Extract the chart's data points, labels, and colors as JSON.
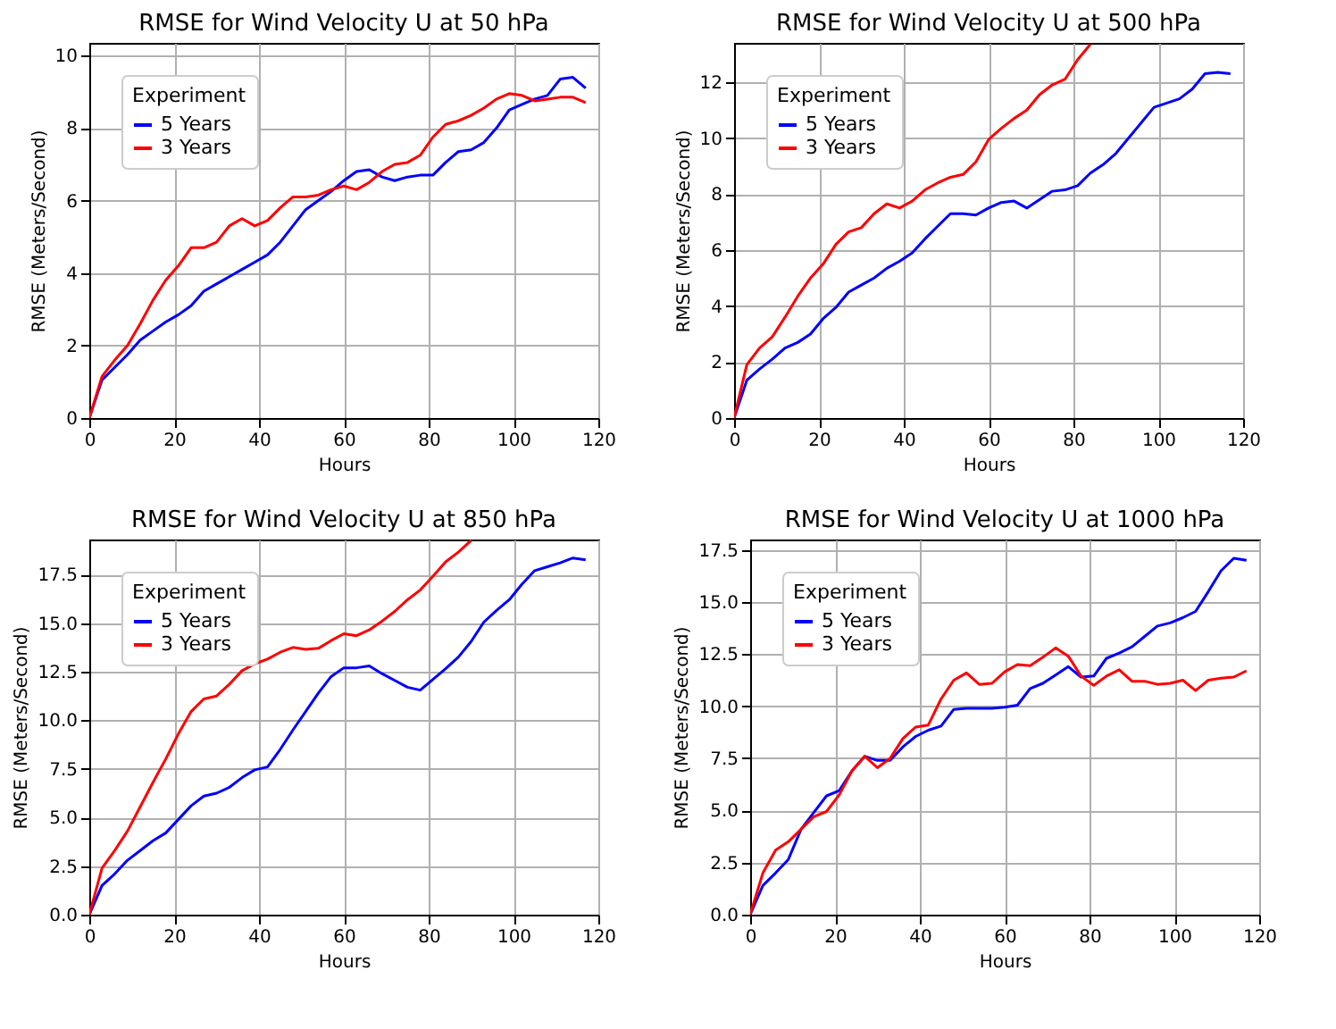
{
  "chart_data": [
    {
      "type": "line",
      "line_style": "solid",
      "title": "RMSE for Wind Velocity U at 50 hPa",
      "xlabel": "Hours",
      "ylabel": "RMSE (Meters/Second)",
      "legend_title": "Experiment",
      "legend": "top left",
      "grid": true,
      "x": [
        0,
        3,
        6,
        9,
        12,
        15,
        18,
        21,
        24,
        27,
        30,
        33,
        36,
        39,
        42,
        45,
        48,
        51,
        54,
        57,
        60,
        63,
        66,
        69,
        72,
        75,
        78,
        81,
        84,
        87,
        90,
        93,
        96,
        99,
        102,
        105,
        108,
        111,
        114,
        117
      ],
      "xlim": [
        0,
        120
      ],
      "xticks": [
        0,
        20,
        40,
        60,
        80,
        100,
        120
      ],
      "ylim": [
        0,
        10.35
      ],
      "yticks": [
        0,
        2,
        4,
        6,
        8,
        10
      ],
      "series": [
        {
          "name": "5 Years",
          "color": "#0000ff",
          "values": [
            0,
            1.05,
            1.4,
            1.75,
            2.15,
            2.4,
            2.65,
            2.85,
            3.1,
            3.5,
            3.7,
            3.9,
            4.1,
            4.3,
            4.5,
            4.85,
            5.3,
            5.75,
            6.0,
            6.25,
            6.55,
            6.8,
            6.85,
            6.65,
            6.55,
            6.65,
            6.7,
            6.7,
            7.05,
            7.35,
            7.4,
            7.6,
            8.0,
            8.5,
            8.65,
            8.8,
            8.9,
            9.35,
            9.4,
            9.1
          ]
        },
        {
          "name": "3 Years",
          "color": "#ff0000",
          "values": [
            0,
            1.15,
            1.6,
            2.0,
            2.6,
            3.25,
            3.8,
            4.2,
            4.7,
            4.7,
            4.85,
            5.3,
            5.5,
            5.3,
            5.45,
            5.8,
            6.1,
            6.1,
            6.15,
            6.3,
            6.4,
            6.3,
            6.5,
            6.8,
            7.0,
            7.05,
            7.25,
            7.75,
            8.1,
            8.2,
            8.35,
            8.55,
            8.8,
            8.95,
            8.9,
            8.75,
            8.8,
            8.85,
            8.85,
            8.7
          ]
        }
      ]
    },
    {
      "type": "line",
      "line_style": "solid",
      "title": "RMSE for Wind Velocity U at 500 hPa",
      "xlabel": "Hours",
      "ylabel": "RMSE (Meters/Second)",
      "legend_title": "Experiment",
      "legend": "top left",
      "grid": true,
      "x": [
        0,
        3,
        6,
        9,
        12,
        15,
        18,
        21,
        24,
        27,
        30,
        33,
        36,
        39,
        42,
        45,
        48,
        51,
        54,
        57,
        60,
        63,
        66,
        69,
        72,
        75,
        78,
        81,
        84,
        87,
        90,
        93,
        96,
        99,
        102,
        105,
        108,
        111,
        114,
        117
      ],
      "xlim": [
        0,
        120
      ],
      "xticks": [
        0,
        20,
        40,
        60,
        80,
        100,
        120
      ],
      "ylim": [
        0,
        13.4
      ],
      "yticks": [
        0,
        2,
        4,
        6,
        8,
        10,
        12
      ],
      "series": [
        {
          "name": "5 Years",
          "color": "#0000ff",
          "values": [
            0,
            1.35,
            1.75,
            2.1,
            2.5,
            2.7,
            3.0,
            3.55,
            3.95,
            4.5,
            4.75,
            5.0,
            5.35,
            5.6,
            5.9,
            6.4,
            6.85,
            7.3,
            7.3,
            7.25,
            7.5,
            7.7,
            7.75,
            7.5,
            7.8,
            8.1,
            8.15,
            8.3,
            8.75,
            9.05,
            9.45,
            10.0,
            10.55,
            11.1,
            11.25,
            11.4,
            11.75,
            12.3,
            12.35,
            12.3
          ]
        },
        {
          "name": "3 Years",
          "color": "#ff0000",
          "values": [
            0,
            1.9,
            2.5,
            2.9,
            3.6,
            4.35,
            5.0,
            5.5,
            6.2,
            6.65,
            6.8,
            7.3,
            7.65,
            7.5,
            7.75,
            8.15,
            8.4,
            8.6,
            8.7,
            9.15,
            9.95,
            10.35,
            10.7,
            11.0,
            11.55,
            11.9,
            12.1,
            12.8,
            13.35,
            null,
            null,
            null,
            null,
            null,
            null,
            null,
            null,
            null,
            null,
            null
          ]
        }
      ]
    },
    {
      "type": "line",
      "line_style": "solid",
      "title": "RMSE for Wind Velocity U at 850 hPa",
      "xlabel": "Hours",
      "ylabel": "RMSE (Meters/Second)",
      "legend_title": "Experiment",
      "legend": "top left",
      "grid": true,
      "x": [
        0,
        3,
        6,
        9,
        12,
        15,
        18,
        21,
        24,
        27,
        30,
        33,
        36,
        39,
        42,
        45,
        48,
        51,
        54,
        57,
        60,
        63,
        66,
        69,
        72,
        75,
        78,
        81,
        84,
        87,
        90,
        93,
        96,
        99,
        102,
        105,
        108,
        111,
        114,
        117
      ],
      "xlim": [
        0,
        120
      ],
      "xticks": [
        0,
        20,
        40,
        60,
        80,
        100,
        120
      ],
      "ylim": [
        0,
        19.3
      ],
      "yticks": [
        {
          "value": 0,
          "label": "0.0"
        },
        2.5,
        {
          "value": 5,
          "label": "5.0"
        },
        7.5,
        {
          "value": 10,
          "label": "10.0"
        },
        12.5,
        {
          "value": 15,
          "label": "15.0"
        },
        17.5
      ],
      "series": [
        {
          "name": "5 Years",
          "color": "#0000ff",
          "values": [
            0,
            1.5,
            2.1,
            2.8,
            3.3,
            3.8,
            4.2,
            4.9,
            5.6,
            6.1,
            6.25,
            6.55,
            7.05,
            7.45,
            7.6,
            8.5,
            9.5,
            10.45,
            11.4,
            12.25,
            12.7,
            12.7,
            12.8,
            12.4,
            12.05,
            11.7,
            11.55,
            12.1,
            12.65,
            13.25,
            14.05,
            15.05,
            15.65,
            16.2,
            17.0,
            17.7,
            17.9,
            18.1,
            18.35,
            18.25
          ]
        },
        {
          "name": "3 Years",
          "color": "#ff0000",
          "values": [
            0,
            2.4,
            3.3,
            4.3,
            5.55,
            6.8,
            8.0,
            9.3,
            10.45,
            11.1,
            11.25,
            11.85,
            12.55,
            12.9,
            13.15,
            13.5,
            13.75,
            13.65,
            13.7,
            14.1,
            14.45,
            14.35,
            14.65,
            15.1,
            15.6,
            16.2,
            16.7,
            17.4,
            18.15,
            18.65,
            19.25,
            null,
            null,
            null,
            null,
            null,
            null,
            null,
            null,
            null
          ]
        }
      ]
    },
    {
      "type": "line",
      "line_style": "solid",
      "title": "RMSE for Wind Velocity U at 1000 hPa",
      "xlabel": "Hours",
      "ylabel": "RMSE (Meters/Second)",
      "legend_title": "Experiment",
      "legend": "top left",
      "grid": true,
      "x": [
        0,
        3,
        6,
        9,
        12,
        15,
        18,
        21,
        24,
        27,
        30,
        33,
        36,
        39,
        42,
        45,
        48,
        51,
        54,
        57,
        60,
        63,
        66,
        69,
        72,
        75,
        78,
        81,
        84,
        87,
        90,
        93,
        96,
        99,
        102,
        105,
        108,
        111,
        114,
        117
      ],
      "xlim": [
        0,
        120
      ],
      "xticks": [
        0,
        20,
        40,
        60,
        80,
        100,
        120
      ],
      "ylim": [
        0,
        18.0
      ],
      "yticks": [
        {
          "value": 0,
          "label": "0.0"
        },
        2.5,
        {
          "value": 5,
          "label": "5.0"
        },
        7.5,
        {
          "value": 10,
          "label": "10.0"
        },
        12.5,
        {
          "value": 15,
          "label": "15.0"
        },
        17.5
      ],
      "series": [
        {
          "name": "5 Years",
          "color": "#0000ff",
          "values": [
            0,
            1.4,
            2.0,
            2.65,
            4.1,
            4.9,
            5.7,
            5.95,
            6.9,
            7.6,
            7.4,
            7.4,
            8.05,
            8.55,
            8.85,
            9.05,
            9.85,
            9.9,
            9.9,
            9.9,
            9.95,
            10.05,
            10.85,
            11.1,
            11.5,
            11.9,
            11.4,
            11.45,
            12.3,
            12.55,
            12.85,
            13.35,
            13.85,
            14.0,
            14.25,
            14.55,
            15.5,
            16.5,
            17.1,
            17.0
          ]
        },
        {
          "name": "3 Years",
          "color": "#ff0000",
          "values": [
            0,
            2.0,
            3.1,
            3.5,
            4.1,
            4.7,
            4.95,
            5.75,
            6.9,
            7.6,
            7.05,
            7.5,
            8.45,
            9.0,
            9.1,
            10.35,
            11.25,
            11.6,
            11.05,
            11.1,
            11.65,
            12.0,
            11.95,
            12.35,
            12.8,
            12.4,
            11.45,
            11.0,
            11.45,
            11.75,
            11.2,
            11.2,
            11.05,
            11.1,
            11.25,
            10.75,
            11.25,
            11.35,
            11.4,
            11.7
          ]
        }
      ]
    }
  ]
}
